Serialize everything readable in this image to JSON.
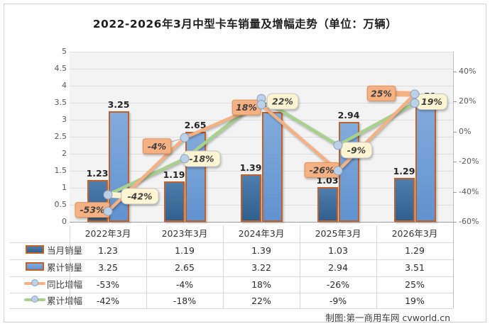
{
  "title": "2022-2026年3月中型卡车销量及增幅走势（单位：万辆）",
  "credit": "制图:第一商用车网 cvworld.cn",
  "chart_data": {
    "type": "bar+line",
    "categories": [
      "2022年3月",
      "2023年3月",
      "2024年3月",
      "2025年3月",
      "2026年3月"
    ],
    "series": [
      {
        "name": "当月销量",
        "type": "bar",
        "axis": "left",
        "values": [
          1.23,
          1.19,
          1.39,
          1.03,
          1.29
        ],
        "labels": [
          "1.23",
          "1.19",
          "1.39",
          "1.03",
          "1.29"
        ]
      },
      {
        "name": "累计销量",
        "type": "bar",
        "axis": "left",
        "values": [
          3.25,
          2.65,
          3.22,
          2.94,
          3.51
        ],
        "labels": [
          "3.25",
          "2.65",
          "3.22",
          "2.94",
          "3.51"
        ]
      },
      {
        "name": "同比增幅",
        "type": "line",
        "axis": "right",
        "values_pct": [
          -53,
          -4,
          18,
          -26,
          25
        ],
        "labels": [
          "-53%",
          "-4%",
          "18%",
          "-26%",
          "25%"
        ]
      },
      {
        "name": "累计增幅",
        "type": "line",
        "axis": "right",
        "values_pct": [
          -42,
          -18,
          22,
          -9,
          19
        ],
        "labels": [
          "-42%",
          "-18%",
          "22%",
          "-9%",
          "19%"
        ]
      }
    ],
    "left_axis": {
      "min": 0,
      "max": 5,
      "ticks": [
        "5",
        "4.5",
        "4",
        "3.5",
        "3",
        "2.5",
        "2",
        "1.5",
        "1",
        "0.5",
        "0"
      ]
    },
    "right_axis": {
      "min": -60,
      "max": 40,
      "ticks": [
        "40%",
        "20%",
        "0%",
        "-20%",
        "-40%",
        "-60%"
      ]
    },
    "grid": true,
    "legend_position": "table-left",
    "colors": {
      "bar_monthly_top": "#4e7dae",
      "bar_monthly_bottom": "#31608d",
      "bar_cumulative_top": "#83abdc",
      "bar_cumulative_bottom": "#6092cf",
      "bar_border": "#c0622c",
      "line_yoy": "#f4b183",
      "line_cum": "#a9d18e",
      "marker_fill": "#bcd0e8",
      "marker_stroke": "#8ba3bf",
      "label_yoy_bg": "#f5b183",
      "label_yoy_border": "#df9457",
      "label_cum_bg": "#fdf4d2",
      "label_cum_border": "#c9c9c9"
    }
  }
}
